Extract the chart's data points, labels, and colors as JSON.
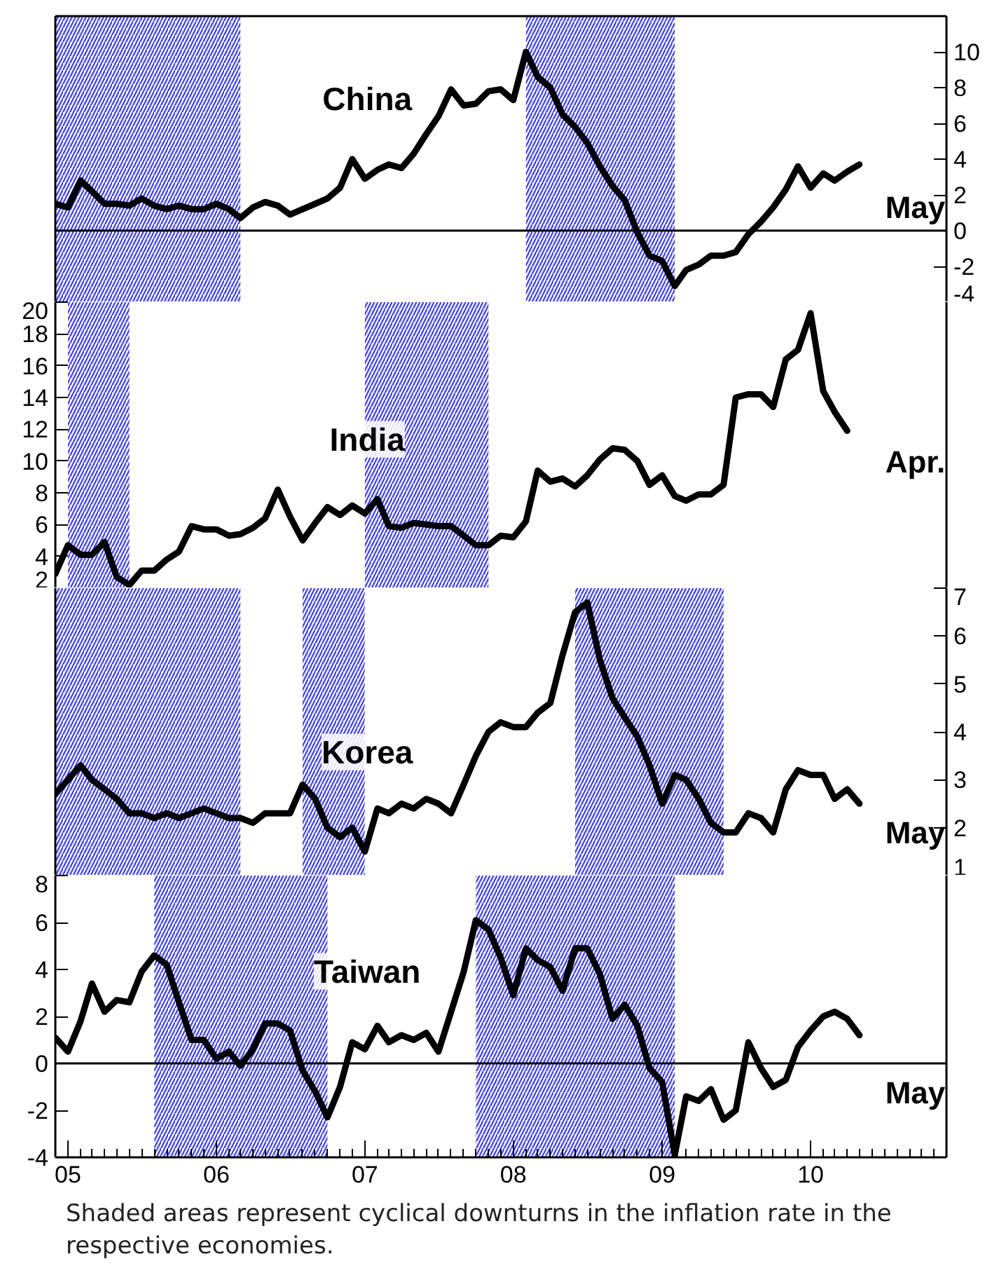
{
  "chart_data": [
    {
      "type": "line",
      "x": [
        "2004-12",
        "2005-01",
        "2005-02",
        "2005-03",
        "2005-04",
        "2005-05",
        "2005-06",
        "2005-07",
        "2005-08",
        "2005-09",
        "2005-10",
        "2005-11",
        "2005-12",
        "2006-01",
        "2006-02",
        "2006-03",
        "2006-04",
        "2006-05",
        "2006-06",
        "2006-07",
        "2006-08",
        "2006-09",
        "2006-10",
        "2006-11",
        "2006-12",
        "2007-01",
        "2007-02",
        "2007-03",
        "2007-04",
        "2007-05",
        "2007-06",
        "2007-07",
        "2007-08",
        "2007-09",
        "2007-10",
        "2007-11",
        "2007-12",
        "2008-01",
        "2008-02",
        "2008-03",
        "2008-04",
        "2008-05",
        "2008-06",
        "2008-07",
        "2008-08",
        "2008-09",
        "2008-10",
        "2008-11",
        "2008-12",
        "2009-01",
        "2009-02",
        "2009-03",
        "2009-04",
        "2009-05",
        "2009-06",
        "2009-07",
        "2009-08",
        "2009-09",
        "2009-10",
        "2009-11",
        "2009-12",
        "2010-01",
        "2010-02",
        "2010-03",
        "2010-04",
        "2010-05"
      ],
      "series": [
        {
          "name": "China",
          "color": "#000000",
          "axis": "y2",
          "values": [
            1.5,
            1.3,
            2.8,
            2.2,
            1.5,
            1.5,
            1.4,
            1.8,
            1.4,
            1.2,
            1.4,
            1.2,
            1.2,
            1.5,
            1.2,
            0.7,
            1.3,
            1.6,
            1.4,
            0.9,
            1.2,
            1.5,
            1.8,
            2.4,
            4.0,
            2.9,
            3.4,
            3.7,
            3.5,
            4.3,
            5.4,
            6.4,
            7.9,
            7.0,
            7.1,
            7.8,
            7.9,
            7.3,
            10.0,
            8.6,
            8.0,
            6.5,
            5.8,
            4.9,
            3.6,
            2.5,
            1.7,
            -0.1,
            -1.4,
            -1.7,
            -3.1,
            -2.2,
            -1.9,
            -1.4,
            -1.4,
            -1.2,
            -0.2,
            0.5,
            1.3,
            2.3,
            3.6,
            2.4,
            3.2,
            2.8,
            3.3,
            3.7
          ]
        }
      ],
      "xlim": [
        "2004-12",
        "2010-12"
      ],
      "y2lim": [
        -4,
        12
      ],
      "y2ticks": [
        -4,
        -2,
        0,
        2,
        4,
        6,
        8,
        10
      ],
      "tick_labels": "y",
      "line_style": "solid",
      "grid": false,
      "ref_lines": [
        {
          "axis": "y2",
          "value": 0,
          "color": "#000000"
        }
      ],
      "bands": [
        {
          "axis": "x",
          "from": "2004-12",
          "to": "2006-03",
          "color": "#4848e8"
        },
        {
          "axis": "x",
          "from": "2008-02",
          "to": "2009-02",
          "color": "#4848e8"
        }
      ],
      "annotations": [
        "May"
      ]
    },
    {
      "type": "line",
      "x": [
        "2004-12",
        "2005-01",
        "2005-02",
        "2005-03",
        "2005-04",
        "2005-05",
        "2005-06",
        "2005-07",
        "2005-08",
        "2005-09",
        "2005-10",
        "2005-11",
        "2005-12",
        "2006-01",
        "2006-02",
        "2006-03",
        "2006-04",
        "2006-05",
        "2006-06",
        "2006-07",
        "2006-08",
        "2006-09",
        "2006-10",
        "2006-11",
        "2006-12",
        "2007-01",
        "2007-02",
        "2007-03",
        "2007-04",
        "2007-05",
        "2007-06",
        "2007-07",
        "2007-08",
        "2007-09",
        "2007-10",
        "2007-11",
        "2007-12",
        "2008-01",
        "2008-02",
        "2008-03",
        "2008-04",
        "2008-05",
        "2008-06",
        "2008-07",
        "2008-08",
        "2008-09",
        "2008-10",
        "2008-11",
        "2008-12",
        "2009-01",
        "2009-02",
        "2009-03",
        "2009-04",
        "2009-05",
        "2009-06",
        "2009-07",
        "2009-08",
        "2009-09",
        "2009-10",
        "2009-11",
        "2009-12",
        "2010-01",
        "2010-02",
        "2010-03",
        "2010-04"
      ],
      "series": [
        {
          "name": "India",
          "color": "#000000",
          "values": [
            2.9,
            4.7,
            4.1,
            4.1,
            4.9,
            2.7,
            2.2,
            3.1,
            3.1,
            3.8,
            4.3,
            5.9,
            5.7,
            5.7,
            5.3,
            5.4,
            5.8,
            6.4,
            8.2,
            6.5,
            5.0,
            6.1,
            7.1,
            6.6,
            7.2,
            6.7,
            7.6,
            5.9,
            5.8,
            6.1,
            6.0,
            5.9,
            5.9,
            5.3,
            4.7,
            4.7,
            5.3,
            5.2,
            6.2,
            9.4,
            8.7,
            8.9,
            8.4,
            9.1,
            10.1,
            10.8,
            10.7,
            10.0,
            8.5,
            9.1,
            7.8,
            7.5,
            7.9,
            7.9,
            8.5,
            14.0,
            14.2,
            14.2,
            13.4,
            16.4,
            17.0,
            19.3,
            14.4,
            13.1,
            11.9
          ]
        }
      ],
      "xlim": [
        "2004-12",
        "2010-12"
      ],
      "ylim": [
        2,
        20
      ],
      "yticks": [
        2,
        4,
        6,
        8,
        10,
        12,
        14,
        16,
        18,
        20
      ],
      "tick_labels": "y",
      "line_style": "solid",
      "grid": false,
      "bands": [
        {
          "axis": "x",
          "from": "2005-01",
          "to": "2005-06",
          "color": "#4848e8"
        },
        {
          "axis": "x",
          "from": "2007-01",
          "to": "2007-11",
          "color": "#4848e8"
        }
      ],
      "annotations": [
        "Apr."
      ]
    },
    {
      "type": "line",
      "x": [
        "2004-12",
        "2005-01",
        "2005-02",
        "2005-03",
        "2005-04",
        "2005-05",
        "2005-06",
        "2005-07",
        "2005-08",
        "2005-09",
        "2005-10",
        "2005-11",
        "2005-12",
        "2006-01",
        "2006-02",
        "2006-03",
        "2006-04",
        "2006-05",
        "2006-06",
        "2006-07",
        "2006-08",
        "2006-09",
        "2006-10",
        "2006-11",
        "2006-12",
        "2007-01",
        "2007-02",
        "2007-03",
        "2007-04",
        "2007-05",
        "2007-06",
        "2007-07",
        "2007-08",
        "2007-09",
        "2007-10",
        "2007-11",
        "2007-12",
        "2008-01",
        "2008-02",
        "2008-03",
        "2008-04",
        "2008-05",
        "2008-06",
        "2008-07",
        "2008-08",
        "2008-09",
        "2008-10",
        "2008-11",
        "2008-12",
        "2009-01",
        "2009-02",
        "2009-03",
        "2009-04",
        "2009-05",
        "2009-06",
        "2009-07",
        "2009-08",
        "2009-09",
        "2009-10",
        "2009-11",
        "2009-12",
        "2010-01",
        "2010-02",
        "2010-03",
        "2010-04",
        "2010-05"
      ],
      "series": [
        {
          "name": "Korea",
          "color": "#000000",
          "axis": "y2",
          "values": [
            2.7,
            3.0,
            3.3,
            3.0,
            2.8,
            2.6,
            2.3,
            2.3,
            2.2,
            2.3,
            2.2,
            2.3,
            2.4,
            2.3,
            2.2,
            2.2,
            2.1,
            2.3,
            2.3,
            2.3,
            2.9,
            2.6,
            2.0,
            1.8,
            2.0,
            1.5,
            2.4,
            2.3,
            2.5,
            2.4,
            2.6,
            2.5,
            2.3,
            2.9,
            3.5,
            4.0,
            4.2,
            4.1,
            4.1,
            4.4,
            4.6,
            5.6,
            6.5,
            6.7,
            5.5,
            4.7,
            4.3,
            3.9,
            3.3,
            2.5,
            3.1,
            3.0,
            2.6,
            2.1,
            1.9,
            1.9,
            2.3,
            2.2,
            1.9,
            2.8,
            3.2,
            3.1,
            3.1,
            2.6,
            2.8,
            2.5
          ]
        }
      ],
      "xlim": [
        "2004-12",
        "2010-12"
      ],
      "y2lim": [
        1,
        7
      ],
      "y2ticks": [
        1,
        2,
        3,
        4,
        5,
        6,
        7
      ],
      "tick_labels": "y",
      "line_style": "solid",
      "grid": false,
      "bands": [
        {
          "axis": "x",
          "from": "2004-12",
          "to": "2006-03",
          "color": "#4848e8"
        },
        {
          "axis": "x",
          "from": "2006-08",
          "to": "2007-01",
          "color": "#4848e8"
        },
        {
          "axis": "x",
          "from": "2008-06",
          "to": "2009-06",
          "color": "#4848e8"
        }
      ],
      "annotations": [
        "May"
      ]
    },
    {
      "type": "line",
      "x": [
        "2004-12",
        "2005-01",
        "2005-02",
        "2005-03",
        "2005-04",
        "2005-05",
        "2005-06",
        "2005-07",
        "2005-08",
        "2005-09",
        "2005-10",
        "2005-11",
        "2005-12",
        "2006-01",
        "2006-02",
        "2006-03",
        "2006-04",
        "2006-05",
        "2006-06",
        "2006-07",
        "2006-08",
        "2006-09",
        "2006-10",
        "2006-11",
        "2006-12",
        "2007-01",
        "2007-02",
        "2007-03",
        "2007-04",
        "2007-05",
        "2007-06",
        "2007-07",
        "2007-08",
        "2007-09",
        "2007-10",
        "2007-11",
        "2007-12",
        "2008-01",
        "2008-02",
        "2008-03",
        "2008-04",
        "2008-05",
        "2008-06",
        "2008-07",
        "2008-08",
        "2008-09",
        "2008-10",
        "2008-11",
        "2008-12",
        "2009-01",
        "2009-02",
        "2009-03",
        "2009-04",
        "2009-05",
        "2009-06",
        "2009-07",
        "2009-08",
        "2009-09",
        "2009-10",
        "2009-11",
        "2009-12",
        "2010-01",
        "2010-02",
        "2010-03",
        "2010-04",
        "2010-05"
      ],
      "series": [
        {
          "name": "Taiwan",
          "color": "#000000",
          "values": [
            1.1,
            0.5,
            1.8,
            3.4,
            2.2,
            2.7,
            2.6,
            3.9,
            4.6,
            4.2,
            2.6,
            1.0,
            1.0,
            0.2,
            0.5,
            -0.1,
            0.6,
            1.7,
            1.7,
            1.4,
            -0.3,
            -1.2,
            -2.3,
            -1.0,
            0.9,
            0.6,
            1.6,
            0.9,
            1.2,
            1.0,
            1.3,
            0.5,
            2.2,
            3.9,
            6.1,
            5.7,
            4.5,
            2.9,
            4.9,
            4.4,
            4.1,
            3.1,
            4.9,
            4.9,
            3.8,
            1.9,
            2.5,
            1.6,
            -0.2,
            -0.8,
            -3.9,
            -1.4,
            -1.6,
            -1.1,
            -2.4,
            -2.0,
            0.9,
            -0.2,
            -1.0,
            -0.7,
            0.7,
            1.4,
            2.0,
            2.2,
            1.9,
            1.2
          ]
        }
      ],
      "xlim": [
        "2004-12",
        "2010-12"
      ],
      "xticks": [
        {
          "value": "2005-01",
          "label": "05"
        },
        {
          "value": "2006-01",
          "label": "06"
        },
        {
          "value": "2007-01",
          "label": "07"
        },
        {
          "value": "2008-01",
          "label": "08"
        },
        {
          "value": "2009-01",
          "label": "09"
        },
        {
          "value": "2010-01",
          "label": "10"
        }
      ],
      "ylim": [
        -4,
        8
      ],
      "yticks": [
        -4,
        -2,
        0,
        2,
        4,
        6,
        8
      ],
      "line_style": "solid",
      "grid": false,
      "ref_lines": [
        {
          "axis": "y",
          "value": 0,
          "color": "#000000"
        }
      ],
      "bands": [
        {
          "axis": "x",
          "from": "2005-08",
          "to": "2006-10",
          "color": "#4848e8"
        },
        {
          "axis": "x",
          "from": "2007-10",
          "to": "2009-02",
          "color": "#4848e8"
        }
      ],
      "annotations": [
        "May",
        "Shaded areas represent cyclical downturns in the inflation rate in the respective economies."
      ]
    }
  ]
}
